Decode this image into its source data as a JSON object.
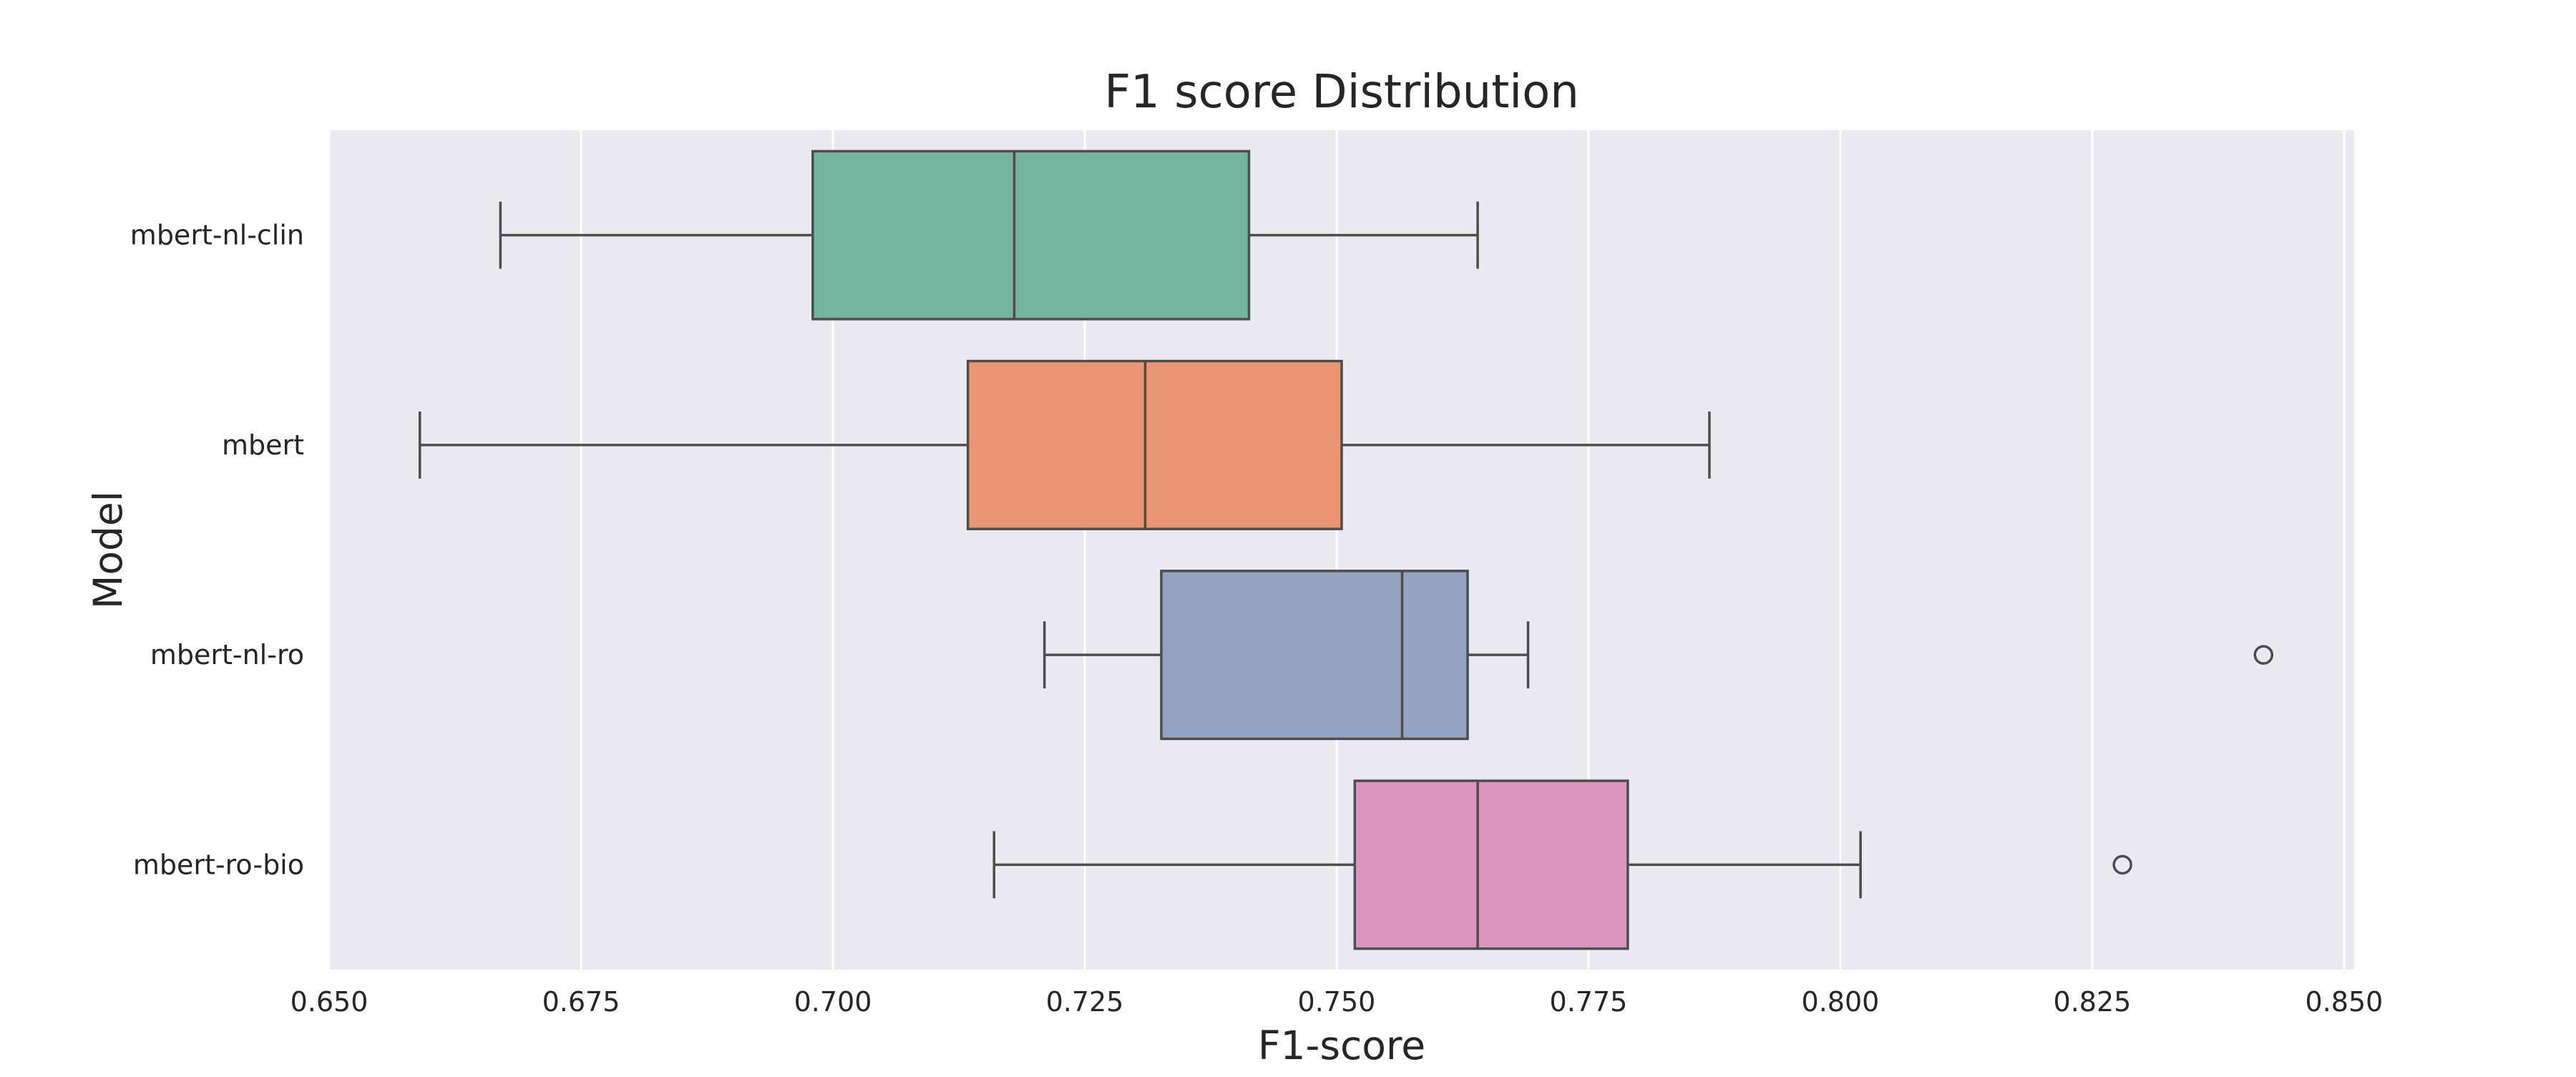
{
  "chart_data": {
    "type": "boxplot",
    "orientation": "horizontal",
    "title": "F1 score Distribution",
    "xlabel": "F1-score",
    "ylabel": "Model",
    "xlim": [
      0.65,
      0.851
    ],
    "xticks": [
      "0.650",
      "0.675",
      "0.700",
      "0.725",
      "0.750",
      "0.775",
      "0.800",
      "0.825",
      "0.850"
    ],
    "grid": true,
    "background": "#EAEAF2",
    "series": [
      {
        "name": "mbert-nl-clin",
        "color": "#72B6A1",
        "whisker_low": 0.667,
        "q1": 0.698,
        "median": 0.718,
        "q3": 0.7413,
        "whisker_high": 0.764,
        "outliers": []
      },
      {
        "name": "mbert",
        "color": "#E99675",
        "whisker_low": 0.659,
        "q1": 0.7134,
        "median": 0.731,
        "q3": 0.7505,
        "whisker_high": 0.787,
        "outliers": []
      },
      {
        "name": "mbert-nl-ro",
        "color": "#95A3C3",
        "whisker_low": 0.721,
        "q1": 0.7326,
        "median": 0.7565,
        "q3": 0.763,
        "whisker_high": 0.769,
        "outliers": [
          0.842
        ]
      },
      {
        "name": "mbert-ro-bio",
        "color": "#DB96C0",
        "whisker_low": 0.716,
        "q1": 0.7518,
        "median": 0.764,
        "q3": 0.7789,
        "whisker_high": 0.802,
        "outliers": [
          0.828
        ]
      }
    ]
  }
}
